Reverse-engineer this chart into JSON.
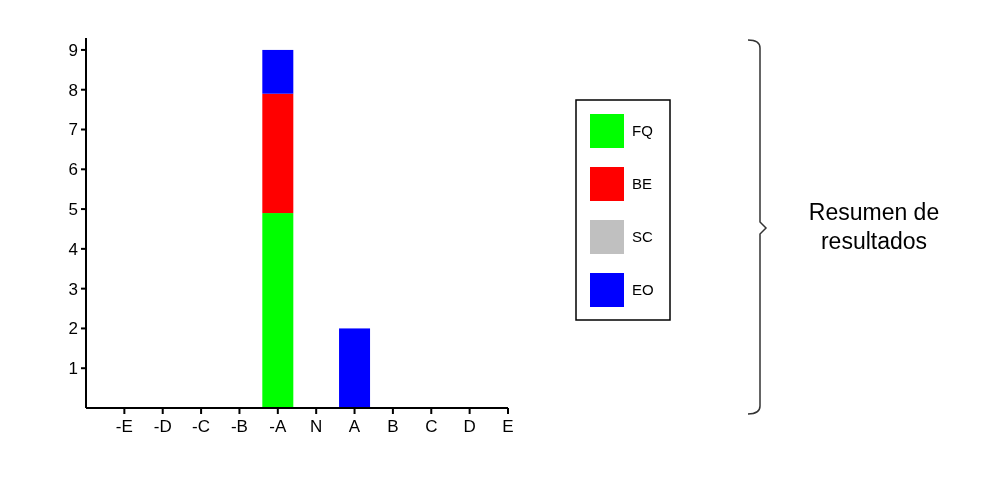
{
  "chart_data": {
    "type": "bar",
    "stacked": true,
    "categories": [
      "-E",
      "-D",
      "-C",
      "-B",
      "-A",
      "N",
      "A",
      "B",
      "C",
      "D",
      "E"
    ],
    "series": [
      {
        "name": "FQ",
        "color": "#00ff00",
        "values": [
          0,
          0,
          0,
          0,
          4.9,
          0,
          0,
          0,
          0,
          0,
          0
        ]
      },
      {
        "name": "BE",
        "color": "#ff0000",
        "values": [
          0,
          0,
          0,
          0,
          3.0,
          0,
          0,
          0,
          0,
          0,
          0
        ]
      },
      {
        "name": "SC",
        "color": "#c0c0c0",
        "values": [
          0,
          0,
          0,
          0,
          0,
          0,
          0,
          0,
          0,
          0,
          0
        ]
      },
      {
        "name": "EO",
        "color": "#0000ff",
        "values": [
          0,
          0,
          0,
          0,
          1.1,
          0,
          2.0,
          0,
          0,
          0,
          0
        ]
      }
    ],
    "ylim": [
      0,
      9.3
    ],
    "yticks": [
      1,
      2,
      3,
      4,
      5,
      6,
      7,
      8,
      9
    ],
    "legend": "right",
    "grid": false,
    "annotations": [
      "Resumen de resultados"
    ]
  }
}
